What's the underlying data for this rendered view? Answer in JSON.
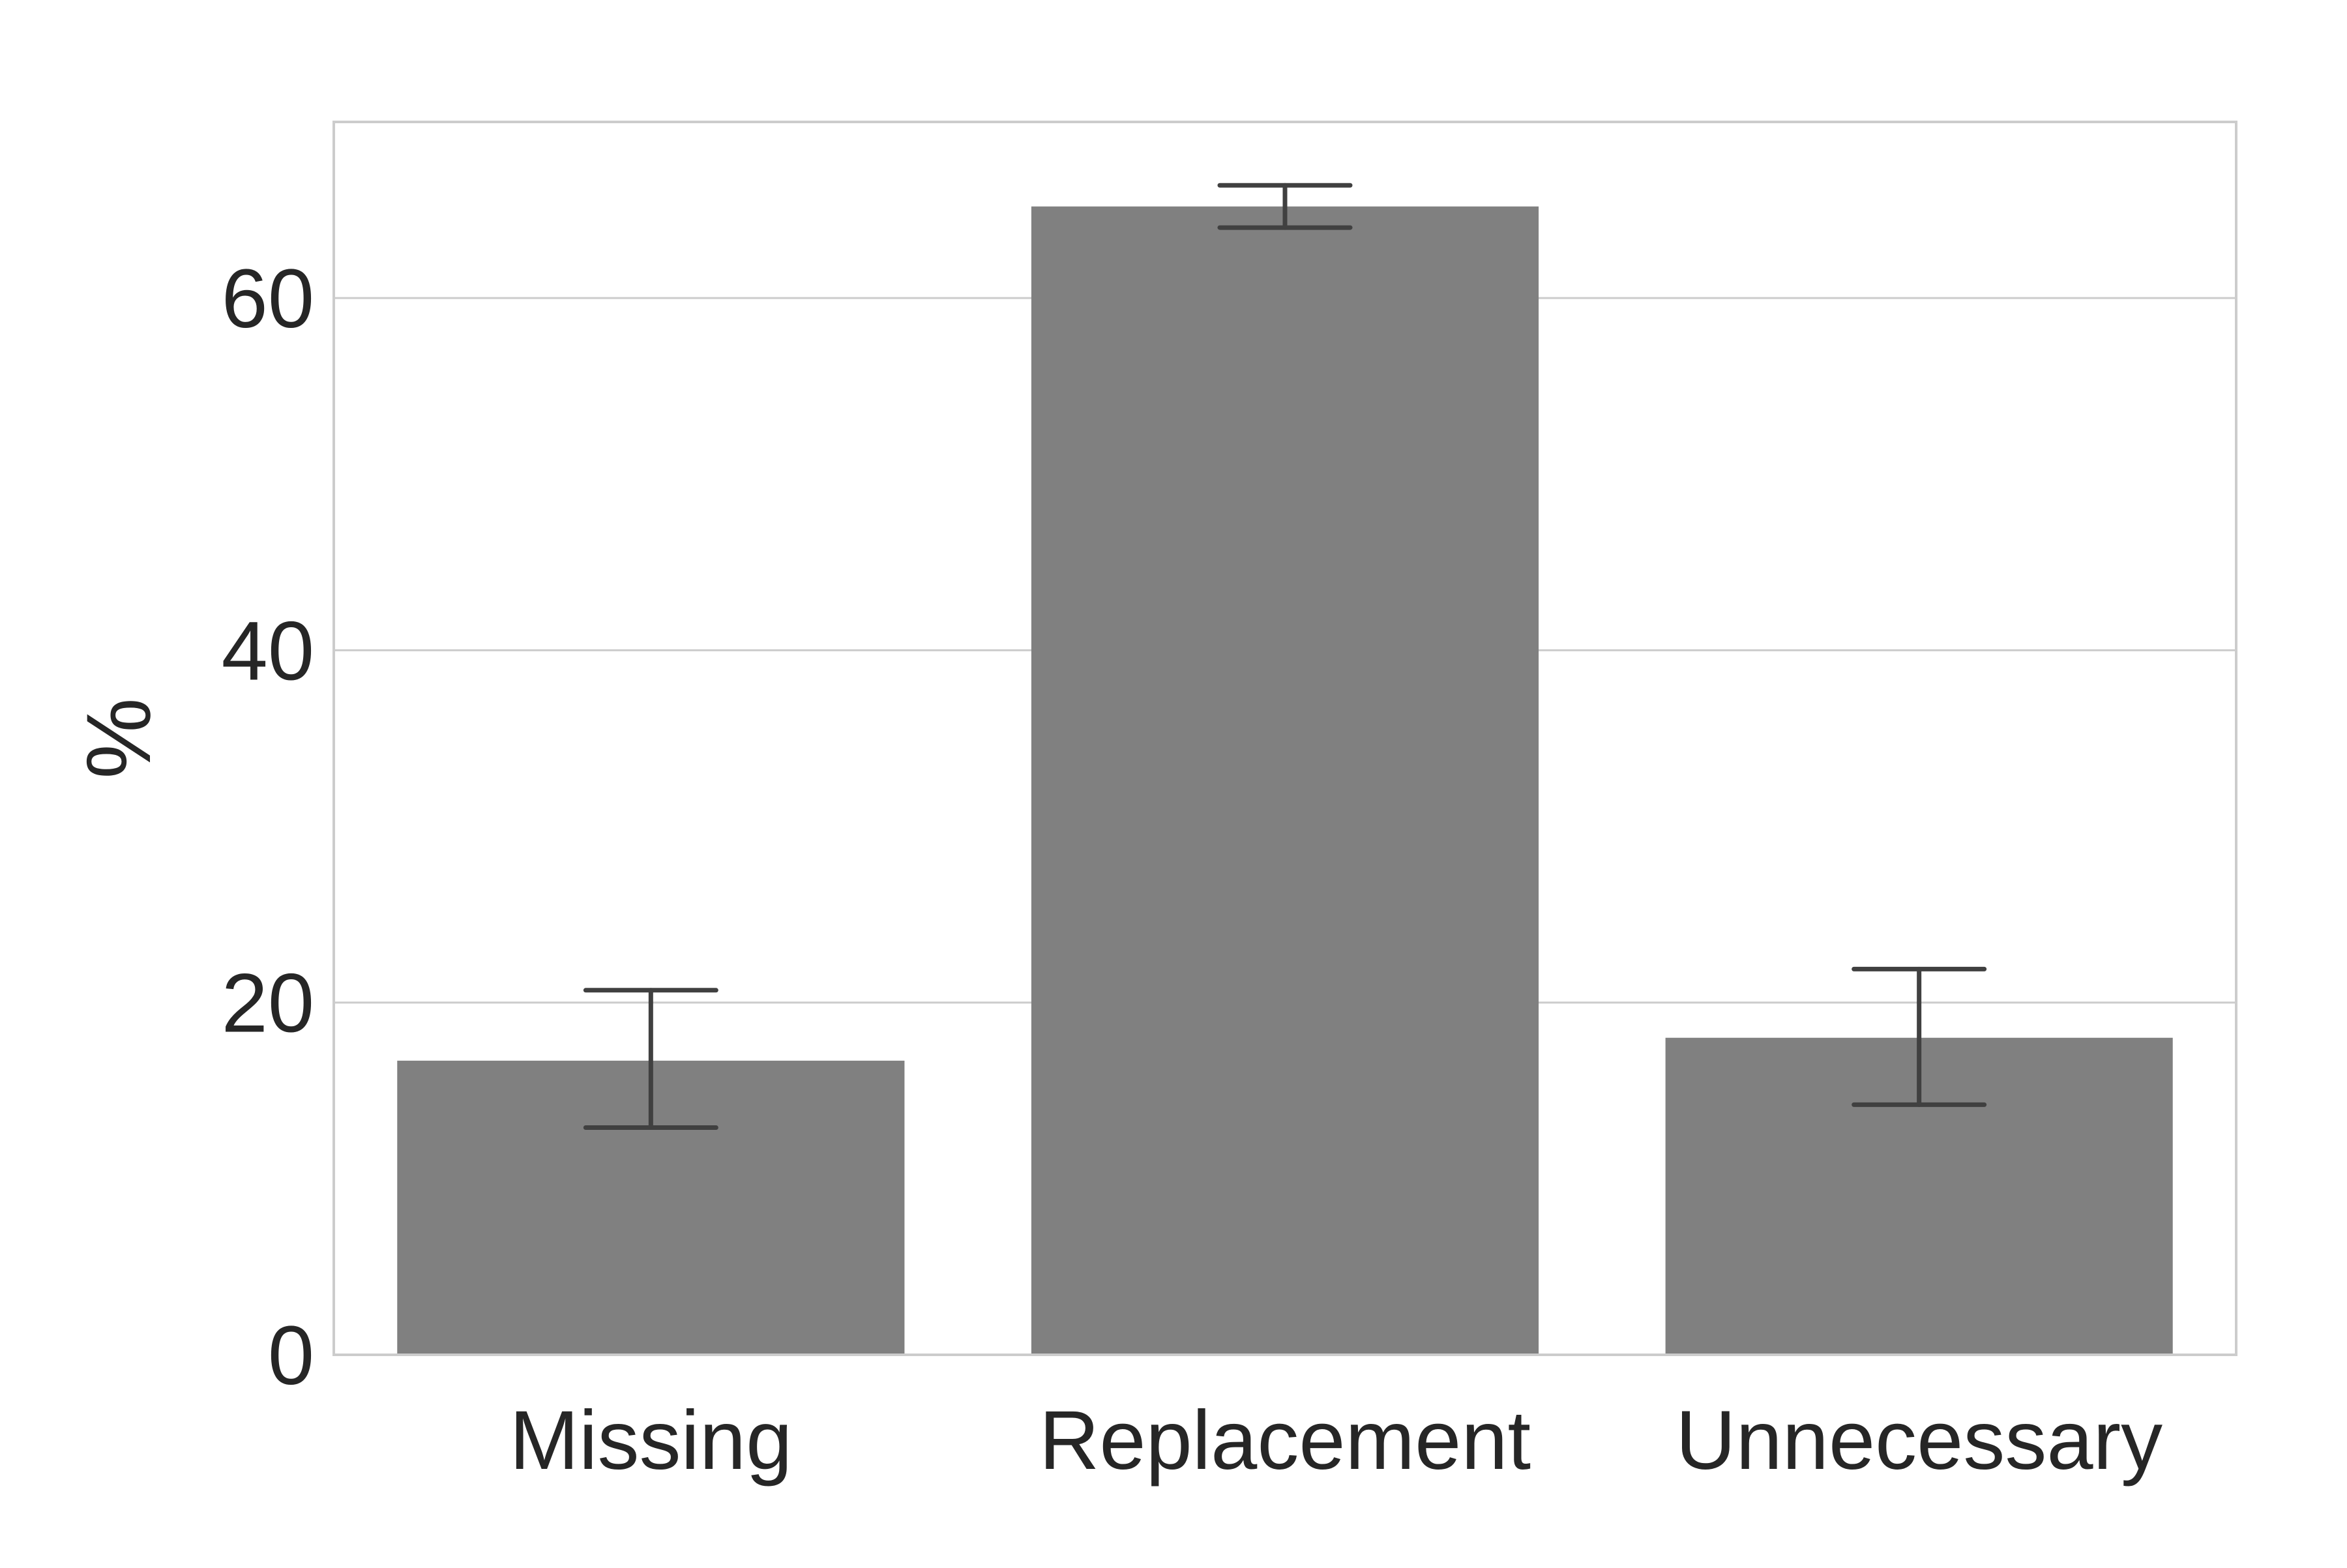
{
  "chart_data": {
    "type": "bar",
    "title": "",
    "xlabel": "",
    "ylabel": "%",
    "categories": [
      "Missing",
      "Replacement",
      "Unnecessary"
    ],
    "values": [
      16.7,
      65.2,
      18.0
    ],
    "error_bars": [
      {
        "low": 12.9,
        "high": 20.7
      },
      {
        "low": 64.0,
        "high": 66.4
      },
      {
        "low": 14.2,
        "high": 21.9
      }
    ],
    "ylim": [
      0,
      70
    ],
    "yticks": [
      0,
      20,
      40,
      60
    ],
    "ytick_labels": [
      "0",
      "20",
      "40",
      "60"
    ],
    "grid": "horizontal",
    "legend": "none",
    "colors": {
      "bar": "#808080",
      "errorbar": "#404040",
      "grid": "#cccccc",
      "spine": "#cccccc",
      "text": "#262626"
    }
  }
}
